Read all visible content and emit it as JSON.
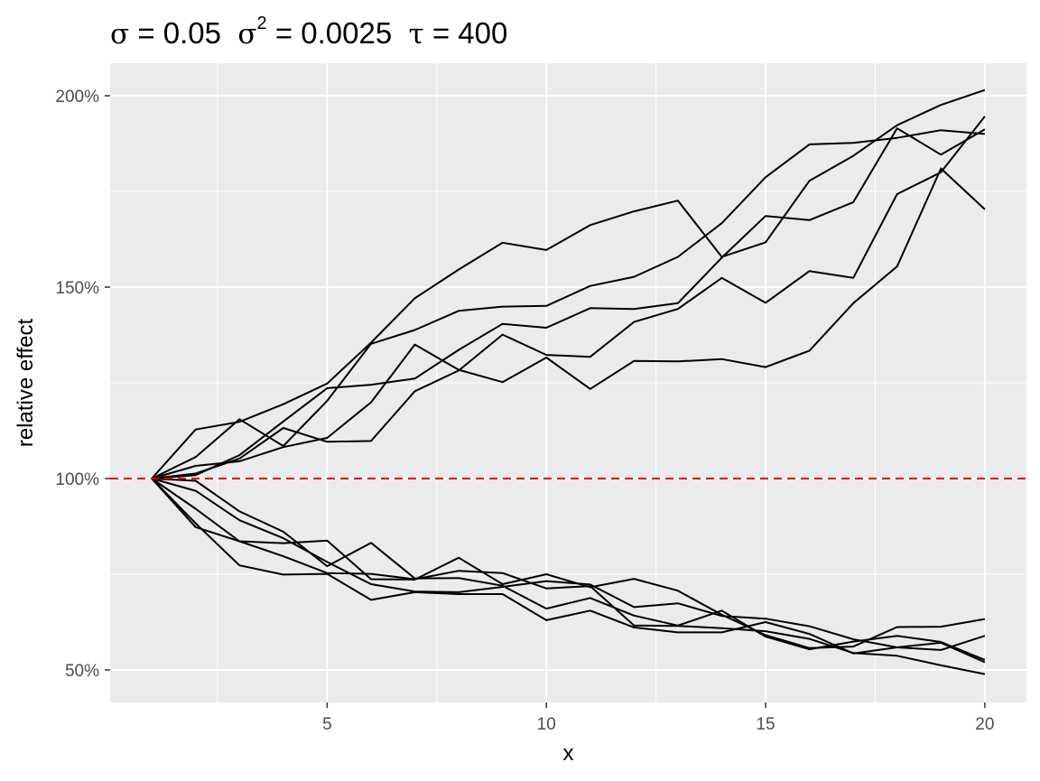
{
  "chart_data": {
    "type": "line",
    "title": {
      "sigma_symbol": "σ",
      "sigma_value": " = 0.05",
      "sigma2_symbol": "σ",
      "sigma2_exponent": "2",
      "sigma2_value": " = 0.0025",
      "tau_symbol": "τ",
      "tau_value": " = 400"
    },
    "xlabel": "x",
    "ylabel": "relative effect",
    "xlim": [
      0.05,
      20.95
    ],
    "ylim": [
      41.5,
      208.5
    ],
    "xticks": [
      5,
      10,
      15,
      20
    ],
    "xtick_labels": [
      "5",
      "10",
      "15",
      "20"
    ],
    "yticks": [
      50,
      100,
      150,
      200
    ],
    "ytick_labels": [
      "50%",
      "100%",
      "150%",
      "200%"
    ],
    "reference_line": {
      "y": 100,
      "color": "#e00000",
      "style": "dashed"
    },
    "grid": true,
    "background": "#ebebeb",
    "line_color": "#000000",
    "x": [
      1,
      2,
      3,
      4,
      5,
      6,
      7,
      8,
      9,
      10,
      11,
      12,
      13,
      14,
      15,
      16,
      17,
      18,
      19,
      20
    ],
    "series": [
      {
        "values": [
          100,
          112.8,
          114.8,
          119.4,
          124.8,
          135.5,
          147.1,
          154.6,
          161.6,
          159.7,
          166.2,
          169.8,
          172.6,
          157.9,
          161.7,
          177.8,
          184.3,
          192.3,
          197.6,
          201.5
        ]
      },
      {
        "values": [
          100,
          105.6,
          115.5,
          108.5,
          120.3,
          135.2,
          138.8,
          143.8,
          144.9,
          145.1,
          150.3,
          152.7,
          157.9,
          166.7,
          178.7,
          187.3,
          187.7,
          189.0,
          191.0,
          190.0
        ]
      },
      {
        "values": [
          100,
          101.3,
          105.2,
          113.2,
          109.6,
          109.8,
          122.8,
          128.2,
          137.6,
          132.3,
          131.8,
          140.9,
          144.3,
          152.4,
          145.9,
          154.2,
          152.4,
          174.3,
          180.0,
          194.6
        ]
      },
      {
        "values": [
          100,
          100.9,
          106.1,
          114.9,
          123.6,
          124.5,
          126.1,
          133.6,
          140.4,
          139.4,
          144.5,
          144.3,
          145.8,
          157.7,
          168.6,
          167.5,
          172.2,
          191.5,
          184.6,
          191.2
        ]
      },
      {
        "values": [
          100,
          103.3,
          104.5,
          108.2,
          110.6,
          119.9,
          135.0,
          128.4,
          125.2,
          131.6,
          123.4,
          130.7,
          130.6,
          131.2,
          129.1,
          133.4,
          145.8,
          155.4,
          181.0,
          170.3
        ]
      },
      {
        "values": [
          100,
          87.3,
          83.6,
          83.1,
          83.8,
          73.7,
          73.6,
          79.3,
          72.4,
          75.0,
          71.6,
          73.8,
          70.7,
          64.4,
          59.1,
          55.7,
          56.1,
          61.2,
          61.3,
          63.3
        ]
      },
      {
        "values": [
          100,
          96.8,
          89.1,
          84.4,
          78.2,
          72.4,
          70.5,
          70.3,
          71.7,
          73.2,
          72.3,
          66.4,
          67.4,
          64.1,
          63.4,
          61.4,
          58.0,
          55.9,
          55.2,
          58.9
        ]
      },
      {
        "values": [
          100,
          92.1,
          83.6,
          79.7,
          75.3,
          75.1,
          73.7,
          75.9,
          75.3,
          71.3,
          71.9,
          61.6,
          61.5,
          60.9,
          60.1,
          58.1,
          54.4,
          53.7,
          51.2,
          48.9
        ]
      },
      {
        "values": [
          100,
          88.3,
          77.3,
          74.9,
          75.1,
          68.3,
          70.3,
          69.8,
          69.8,
          63.0,
          65.5,
          61.1,
          59.8,
          59.8,
          62.5,
          59.4,
          54.3,
          55.9,
          57.1,
          52.0
        ]
      },
      {
        "values": [
          100,
          99.4,
          91.4,
          86.1,
          77.1,
          83.2,
          73.9,
          74.0,
          72.0,
          66.0,
          68.8,
          64.2,
          61.6,
          65.5,
          58.7,
          55.4,
          57.4,
          58.9,
          57.3,
          52.6
        ]
      }
    ]
  }
}
